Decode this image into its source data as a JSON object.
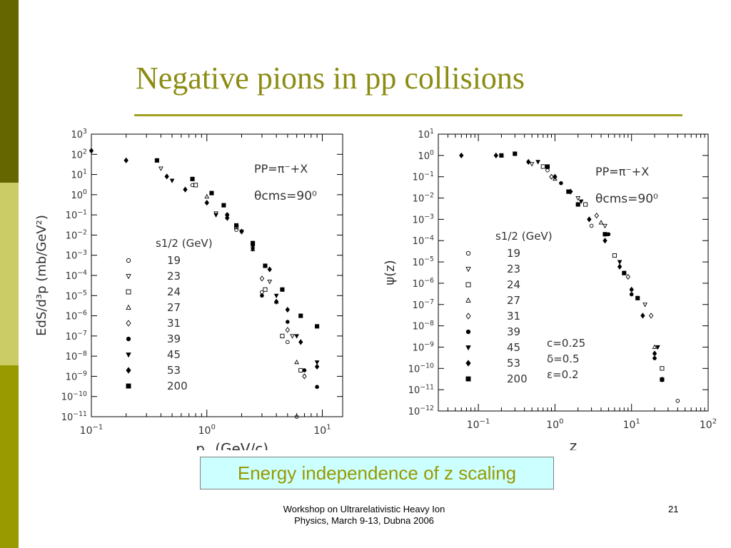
{
  "slide": {
    "title": "Negative pions in pp collisions",
    "caption": "Energy independence of z scaling",
    "footer_line1": "Workshop on Ultrarelativistic Heavy Ion",
    "footer_line2": "Physics, March 9-13, Dubna 2006",
    "page_number": "21",
    "colors": {
      "bar_dark": "#666600",
      "bar_light": "#cccc66",
      "bar_mid": "#999900",
      "title": "#8c8c14",
      "caption_bg": "#ccffff",
      "caption_text": "#999900"
    }
  },
  "chart_data": [
    {
      "type": "scatter",
      "xscale": "log",
      "yscale": "log",
      "xlim": [
        0.1,
        15
      ],
      "ylim": [
        1e-11,
        1000
      ],
      "xlabel": "p_T (GeV/c)",
      "ylabel": "EdS/d³p (mb/GeV²)",
      "x_ticks": [
        {
          "v": 0.1,
          "base": "10",
          "exp": "−1"
        },
        {
          "v": 1,
          "base": "10",
          "exp": "0"
        },
        {
          "v": 10,
          "base": "10",
          "exp": "1"
        }
      ],
      "y_ticks": [
        {
          "v": 1000,
          "base": "10",
          "exp": "3"
        },
        {
          "v": 100,
          "base": "10",
          "exp": "2"
        },
        {
          "v": 10,
          "base": "10",
          "exp": "1"
        },
        {
          "v": 1,
          "base": "10",
          "exp": "0"
        },
        {
          "v": 0.1,
          "base": "10",
          "exp": "−1"
        },
        {
          "v": 0.01,
          "base": "10",
          "exp": "−2"
        },
        {
          "v": 0.001,
          "base": "10",
          "exp": "−3"
        },
        {
          "v": 0.0001,
          "base": "10",
          "exp": "−4"
        },
        {
          "v": 1e-05,
          "base": "10",
          "exp": "−5"
        },
        {
          "v": 1e-06,
          "base": "10",
          "exp": "−6"
        },
        {
          "v": 1e-07,
          "base": "10",
          "exp": "−7"
        },
        {
          "v": 1e-08,
          "base": "10",
          "exp": "−8"
        },
        {
          "v": 1e-09,
          "base": "10",
          "exp": "−9"
        },
        {
          "v": 1e-10,
          "base": "10",
          "exp": "−10"
        },
        {
          "v": 1e-11,
          "base": "10",
          "exp": "−11"
        }
      ],
      "annotation_reaction": "PP=π⁻+X",
      "annotation_angle": "θcms=90⁰",
      "legend_title": "s1/2 (GeV)",
      "series": [
        {
          "name": "19",
          "marker": "circle-open",
          "points": [
            [
              0.75,
              3
            ],
            [
              1.8,
              0.018
            ],
            [
              3.0,
              1.5e-05
            ],
            [
              5.0,
              5e-08
            ],
            [
              6.0,
              1e-11
            ]
          ]
        },
        {
          "name": "23",
          "marker": "triangle-down-open",
          "points": [
            [
              0.4,
              20
            ],
            [
              1.2,
              0.12
            ],
            [
              2.0,
              0.015
            ],
            [
              3.5,
              5e-05
            ],
            [
              5.5,
              1e-07
            ]
          ]
        },
        {
          "name": "24",
          "marker": "square-open",
          "points": [
            [
              0.8,
              3
            ],
            [
              1.8,
              0.025
            ],
            [
              3.2,
              2e-05
            ],
            [
              4.5,
              1e-07
            ],
            [
              6.5,
              2e-09
            ]
          ]
        },
        {
          "name": "27",
          "marker": "triangle-up-open",
          "points": [
            [
              1.0,
              0.8
            ],
            [
              2.5,
              0.002
            ],
            [
              4.0,
              5e-06
            ],
            [
              6.0,
              5e-09
            ]
          ]
        },
        {
          "name": "31",
          "marker": "diamond-open",
          "points": [
            [
              1.5,
              0.1
            ],
            [
              3.0,
              7e-05
            ],
            [
              5.0,
              2e-07
            ],
            [
              7.0,
              1e-09
            ]
          ]
        },
        {
          "name": "39",
          "marker": "circle-filled",
          "points": [
            [
              1.5,
              0.1
            ],
            [
              3.0,
              1e-05
            ],
            [
              5.0,
              5e-07
            ],
            [
              7.0,
              2e-09
            ],
            [
              9.0,
              3e-10
            ]
          ]
        },
        {
          "name": "45",
          "marker": "triangle-down-filled",
          "points": [
            [
              0.5,
              5
            ],
            [
              1.2,
              0.1
            ],
            [
              2.5,
              0.002
            ],
            [
              4.0,
              1e-05
            ],
            [
              6.0,
              1e-07
            ],
            [
              9.0,
              5e-09
            ]
          ]
        },
        {
          "name": "53",
          "marker": "diamond-filled",
          "points": [
            [
              0.1,
              150
            ],
            [
              0.2,
              50
            ],
            [
              0.45,
              8
            ],
            [
              0.65,
              1.8
            ],
            [
              1.0,
              0.4
            ],
            [
              1.5,
              0.07
            ],
            [
              2.0,
              0.015
            ],
            [
              2.5,
              0.003
            ],
            [
              3.5,
              0.0002
            ],
            [
              4.0,
              5e-06
            ],
            [
              5.0,
              2e-06
            ],
            [
              6.5,
              5e-08
            ],
            [
              9.0,
              3e-09
            ]
          ]
        },
        {
          "name": "200",
          "marker": "square-filled",
          "points": [
            [
              0.37,
              50
            ],
            [
              0.75,
              6
            ],
            [
              1.1,
              1.2
            ],
            [
              1.4,
              0.3
            ],
            [
              1.8,
              0.03
            ],
            [
              2.5,
              0.004
            ],
            [
              3.2,
              0.0003
            ],
            [
              4.5,
              2e-05
            ],
            [
              6.5,
              1e-06
            ],
            [
              9.0,
              3e-07
            ]
          ]
        }
      ]
    },
    {
      "type": "scatter",
      "xscale": "log",
      "yscale": "log",
      "xlim": [
        0.03,
        100
      ],
      "ylim": [
        1e-12,
        10
      ],
      "xlabel": "z",
      "ylabel": "ψ(z)",
      "x_ticks": [
        {
          "v": 0.1,
          "base": "10",
          "exp": "−1"
        },
        {
          "v": 1,
          "base": "10",
          "exp": "0"
        },
        {
          "v": 10,
          "base": "10",
          "exp": "1"
        },
        {
          "v": 100,
          "base": "10",
          "exp": "2"
        }
      ],
      "y_ticks": [
        {
          "v": 10,
          "base": "10",
          "exp": "1"
        },
        {
          "v": 1,
          "base": "10",
          "exp": "0"
        },
        {
          "v": 0.1,
          "base": "10",
          "exp": "−1"
        },
        {
          "v": 0.01,
          "base": "10",
          "exp": "−2"
        },
        {
          "v": 0.001,
          "base": "10",
          "exp": "−3"
        },
        {
          "v": 0.0001,
          "base": "10",
          "exp": "−4"
        },
        {
          "v": 1e-05,
          "base": "10",
          "exp": "−5"
        },
        {
          "v": 1e-06,
          "base": "10",
          "exp": "−6"
        },
        {
          "v": 1e-07,
          "base": "10",
          "exp": "−7"
        },
        {
          "v": 1e-08,
          "base": "10",
          "exp": "−8"
        },
        {
          "v": 1e-09,
          "base": "10",
          "exp": "−9"
        },
        {
          "v": 1e-10,
          "base": "10",
          "exp": "−10"
        },
        {
          "v": 1e-11,
          "base": "10",
          "exp": "−11"
        },
        {
          "v": 1e-12,
          "base": "10",
          "exp": "−12"
        }
      ],
      "annotation_reaction": "PP=π⁻+X",
      "annotation_angle": "θcms=90⁰",
      "legend_title": "s1/2 (GeV)",
      "params": [
        "c=0.25",
        "δ=0.5",
        "ε=0.2"
      ],
      "series": [
        {
          "name": "19",
          "marker": "circle-open",
          "points": [
            [
              0.8,
              0.2
            ],
            [
              3,
              0.0005
            ],
            [
              40,
              3e-12
            ]
          ]
        },
        {
          "name": "23",
          "marker": "triangle-down-open",
          "points": [
            [
              0.5,
              0.4
            ],
            [
              2,
              0.01
            ],
            [
              4.5,
              0.0005
            ],
            [
              15,
              1e-07
            ]
          ]
        },
        {
          "name": "24",
          "marker": "square-open",
          "points": [
            [
              0.7,
              0.3
            ],
            [
              2.5,
              0.005
            ],
            [
              6,
              2e-05
            ],
            [
              25,
              1e-10
            ]
          ]
        },
        {
          "name": "27",
          "marker": "triangle-up-open",
          "points": [
            [
              1,
              0.08
            ],
            [
              4,
              0.0007
            ],
            [
              8,
              3e-06
            ],
            [
              20,
              1e-09
            ]
          ]
        },
        {
          "name": "31",
          "marker": "diamond-open",
          "points": [
            [
              0.9,
              0.1
            ],
            [
              3.5,
              0.0015
            ],
            [
              9,
              2e-06
            ],
            [
              18,
              3e-08
            ]
          ]
        },
        {
          "name": "39",
          "marker": "circle-filled",
          "points": [
            [
              1.2,
              0.05
            ],
            [
              5,
              0.0002
            ],
            [
              10,
              3e-07
            ],
            [
              20,
              3e-10
            ]
          ]
        },
        {
          "name": "45",
          "marker": "triangle-down-filled",
          "points": [
            [
              0.6,
              0.5
            ],
            [
              2.2,
              0.007
            ],
            [
              7,
              1e-05
            ],
            [
              22,
              1e-09
            ]
          ]
        },
        {
          "name": "53",
          "marker": "diamond-filled",
          "points": [
            [
              0.06,
              1
            ],
            [
              0.17,
              1
            ],
            [
              0.45,
              0.5
            ],
            [
              1,
              0.1
            ],
            [
              1.6,
              0.02
            ],
            [
              2.8,
              0.001
            ],
            [
              4.5,
              0.0001
            ],
            [
              7,
              6e-06
            ],
            [
              10,
              5e-07
            ],
            [
              14,
              3e-08
            ],
            [
              20,
              5e-10
            ],
            [
              25,
              3e-11
            ]
          ]
        },
        {
          "name": "200",
          "marker": "square-filled",
          "points": [
            [
              0.2,
              1
            ],
            [
              0.3,
              1.2
            ],
            [
              0.8,
              0.3
            ],
            [
              1.5,
              0.02
            ],
            [
              2,
              0.005
            ],
            [
              4.5,
              0.0002
            ],
            [
              8,
              3e-06
            ],
            [
              12,
              2e-07
            ],
            [
              25,
              3e-11
            ]
          ]
        }
      ]
    }
  ]
}
